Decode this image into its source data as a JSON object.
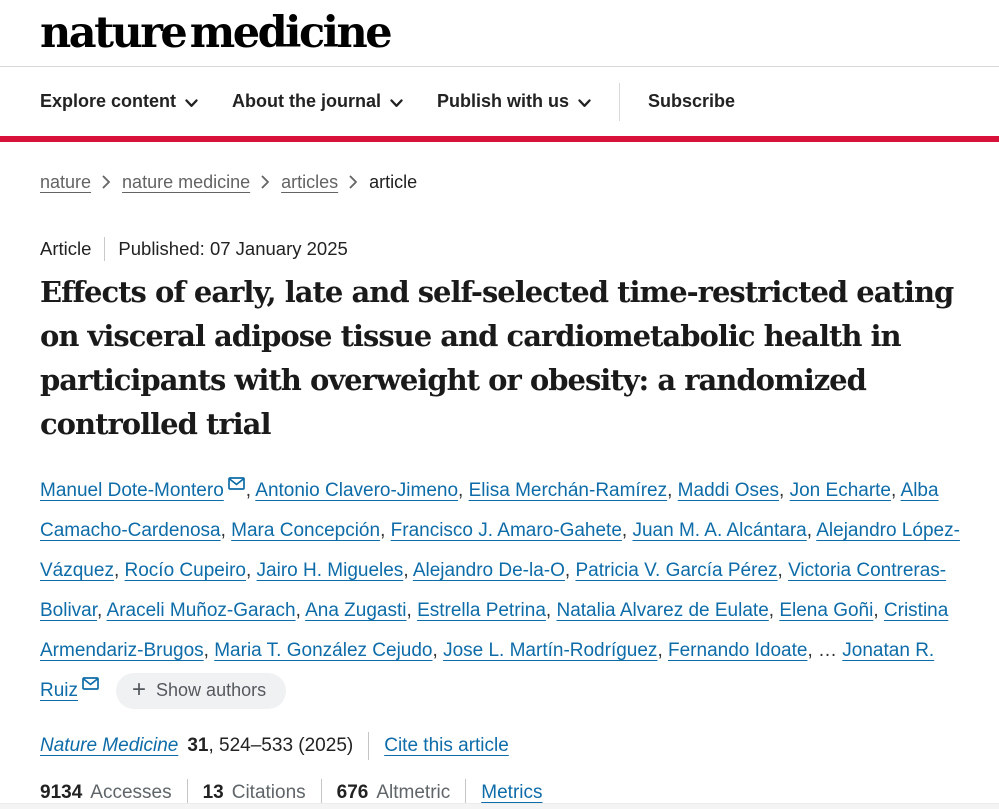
{
  "colors": {
    "accent": "#d8113a",
    "link": "#0e6ca8"
  },
  "header": {
    "logo": "nature medicine",
    "nav": [
      {
        "label": "Explore content",
        "has_dropdown": true
      },
      {
        "label": "About the journal",
        "has_dropdown": true
      },
      {
        "label": "Publish with us",
        "has_dropdown": true
      },
      {
        "label": "Subscribe",
        "has_dropdown": false
      }
    ]
  },
  "breadcrumb": {
    "items": [
      "nature",
      "nature medicine",
      "articles"
    ],
    "current": "article"
  },
  "article": {
    "type_label": "Article",
    "published_label": "Published:",
    "published_date": "07 January 2025",
    "title": "Effects of early, late and self-selected time-restricted eating on visceral adipose tissue and cardiometabolic health in participants with overweight or obesity: a randomized controlled trial"
  },
  "authors": {
    "list": [
      {
        "name": "Manuel Dote-Montero",
        "email": true
      },
      {
        "name": "Antonio Clavero-Jimeno"
      },
      {
        "name": "Elisa Merchán-Ramírez"
      },
      {
        "name": "Maddi Oses"
      },
      {
        "name": "Jon Echarte"
      },
      {
        "name": "Alba Camacho-Cardenosa"
      },
      {
        "name": "Mara Concepción"
      },
      {
        "name": "Francisco J. Amaro-Gahete"
      },
      {
        "name": "Juan M. A. Alcántara"
      },
      {
        "name": "Alejandro López-Vázquez"
      },
      {
        "name": "Rocío Cupeiro"
      },
      {
        "name": "Jairo H. Migueles"
      },
      {
        "name": "Alejandro De-la-O"
      },
      {
        "name": "Patricia V. García Pérez"
      },
      {
        "name": "Victoria Contreras-Bolivar"
      },
      {
        "name": "Araceli Muñoz-Garach"
      },
      {
        "name": "Ana Zugasti"
      },
      {
        "name": "Estrella Petrina"
      },
      {
        "name": "Natalia Alvarez de Eulate"
      },
      {
        "name": "Elena Goñi"
      },
      {
        "name": "Cristina Armendariz-Brugos"
      },
      {
        "name": "Maria T. González Cejudo"
      },
      {
        "name": "Jose L. Martín-Rodríguez"
      },
      {
        "name": "Fernando Idoate"
      }
    ],
    "ellipsis": "…",
    "last_author": {
      "name": "Jonatan R. Ruiz",
      "email": true
    },
    "show_authors_label": "Show authors"
  },
  "citation": {
    "journal": "Nature Medicine",
    "volume": "31",
    "pages": ", 524–533 (2025)",
    "cite_link": "Cite this article"
  },
  "metrics": {
    "items": [
      {
        "value": "9134",
        "label": "Accesses"
      },
      {
        "value": "13",
        "label": "Citations"
      },
      {
        "value": "676",
        "label": "Altmetric"
      }
    ],
    "metrics_link": "Metrics"
  }
}
